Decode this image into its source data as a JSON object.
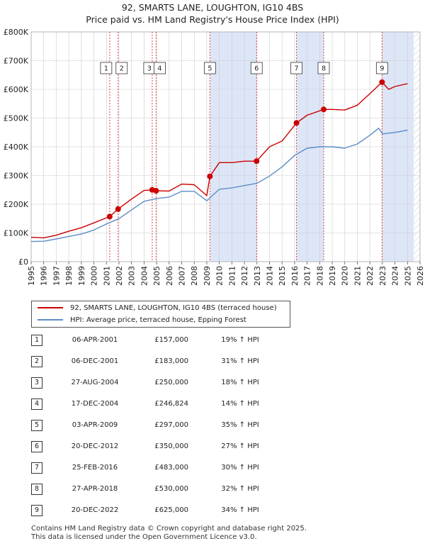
{
  "title_line1": "92, SMARTS LANE, LOUGHTON, IG10 4BS",
  "title_line2": "Price paid vs. HM Land Registry's House Price Index (HPI)",
  "colors": {
    "property": "#cc0000",
    "hpi": "#5b8ec7",
    "shade": "#dde6f7",
    "vline": "#dd4444"
  },
  "legend": {
    "property_label": "92, SMARTS LANE, LOUGHTON, IG10 4BS (terraced house)",
    "hpi_label": "HPI: Average price, terraced house, Epping Forest"
  },
  "sales": [
    {
      "num": "1",
      "date": "06-APR-2001",
      "price": "£157,000",
      "hpi": "19% ↑ HPI"
    },
    {
      "num": "2",
      "date": "06-DEC-2001",
      "price": "£183,000",
      "hpi": "31% ↑ HPI"
    },
    {
      "num": "3",
      "date": "27-AUG-2004",
      "price": "£250,000",
      "hpi": "18% ↑ HPI"
    },
    {
      "num": "4",
      "date": "17-DEC-2004",
      "price": "£246,824",
      "hpi": "14% ↑ HPI"
    },
    {
      "num": "5",
      "date": "03-APR-2009",
      "price": "£297,000",
      "hpi": "35% ↑ HPI"
    },
    {
      "num": "6",
      "date": "20-DEC-2012",
      "price": "£350,000",
      "hpi": "27% ↑ HPI"
    },
    {
      "num": "7",
      "date": "25-FEB-2016",
      "price": "£483,000",
      "hpi": "30% ↑ HPI"
    },
    {
      "num": "8",
      "date": "27-APR-2018",
      "price": "£530,000",
      "hpi": "32% ↑ HPI"
    },
    {
      "num": "9",
      "date": "20-DEC-2022",
      "price": "£625,000",
      "hpi": "34% ↑ HPI"
    }
  ],
  "footer_line1": "Contains HM Land Registry data © Crown copyright and database right 2025.",
  "footer_line2": "This data is licensed under the Open Government Licence v3.0.",
  "chart_data": {
    "type": "line",
    "title": "92, SMARTS LANE, LOUGHTON, IG10 4BS",
    "subtitle": "Price paid vs. HM Land Registry's House Price Index (HPI)",
    "xlabel": "",
    "ylabel": "",
    "xlim": [
      1995,
      2026
    ],
    "ylim": [
      0,
      800000
    ],
    "x_ticks": [
      "1995",
      "1996",
      "1997",
      "1998",
      "1999",
      "2000",
      "2001",
      "2002",
      "2003",
      "2004",
      "2005",
      "2006",
      "2007",
      "2008",
      "2009",
      "2010",
      "2011",
      "2012",
      "2013",
      "2014",
      "2015",
      "2016",
      "2017",
      "2018",
      "2019",
      "2020",
      "2021",
      "2022",
      "2023",
      "2024",
      "2025",
      "2026"
    ],
    "y_tick_values": [
      0,
      100000,
      200000,
      300000,
      400000,
      500000,
      600000,
      700000,
      800000
    ],
    "y_tick_labels": [
      "£0",
      "£100K",
      "£200K",
      "£300K",
      "£400K",
      "£500K",
      "£600K",
      "£700K",
      "£800K"
    ],
    "grid": true,
    "legend_position": "below",
    "shaded_periods": [
      [
        2009.25,
        2012.97
      ],
      [
        2016.15,
        2018.32
      ],
      [
        2022.97,
        2025.5
      ]
    ],
    "forecast_start": 2025.5,
    "series": [
      {
        "name": "92, SMARTS LANE, LOUGHTON, IG10 4BS (terraced house)",
        "x": [
          1995,
          1996,
          1997,
          1998,
          1999,
          2000,
          2001.26,
          2001.93,
          2003,
          2004,
          2004.65,
          2004.96,
          2006,
          2007,
          2008,
          2009,
          2009.25,
          2010,
          2011,
          2012,
          2012.97,
          2014,
          2015,
          2016.15,
          2017,
          2018.32,
          2019,
          2020,
          2021,
          2022,
          2022.97,
          2023.5,
          2024,
          2025.0
        ],
        "values": [
          85000,
          83000,
          92000,
          106000,
          118000,
          135000,
          157000,
          183000,
          218000,
          248000,
          250000,
          246824,
          246000,
          270000,
          268000,
          230000,
          297000,
          345000,
          345000,
          350000,
          350000,
          400000,
          420000,
          483000,
          510000,
          530000,
          530000,
          528000,
          545000,
          585000,
          625000,
          600000,
          610000,
          620000
        ]
      },
      {
        "name": "HPI: Average price, terraced house, Epping Forest",
        "x": [
          1995,
          1996,
          1997,
          1998,
          1999,
          2000,
          2001,
          2002,
          2003,
          2004,
          2005,
          2006,
          2007,
          2008,
          2009,
          2010,
          2011,
          2012,
          2013,
          2014,
          2015,
          2016,
          2017,
          2018,
          2019,
          2020,
          2021,
          2022,
          2022.7,
          2023,
          2024,
          2025.0
        ],
        "values": [
          70000,
          71000,
          79000,
          88000,
          96000,
          110000,
          131000,
          150000,
          180000,
          210000,
          220000,
          225000,
          245000,
          245000,
          212000,
          252000,
          257000,
          265000,
          273000,
          298000,
          330000,
          370000,
          395000,
          400000,
          400000,
          395000,
          410000,
          440000,
          465000,
          445000,
          450000,
          458000
        ]
      }
    ],
    "sale_points": [
      {
        "num": "1",
        "x": 2001.26,
        "y": 157000
      },
      {
        "num": "2",
        "x": 2001.93,
        "y": 183000
      },
      {
        "num": "3",
        "x": 2004.65,
        "y": 250000
      },
      {
        "num": "4",
        "x": 2004.96,
        "y": 246824
      },
      {
        "num": "5",
        "x": 2009.25,
        "y": 297000
      },
      {
        "num": "6",
        "x": 2012.97,
        "y": 350000
      },
      {
        "num": "7",
        "x": 2016.15,
        "y": 483000
      },
      {
        "num": "8",
        "x": 2018.32,
        "y": 530000
      },
      {
        "num": "9",
        "x": 2022.97,
        "y": 625000
      }
    ]
  }
}
